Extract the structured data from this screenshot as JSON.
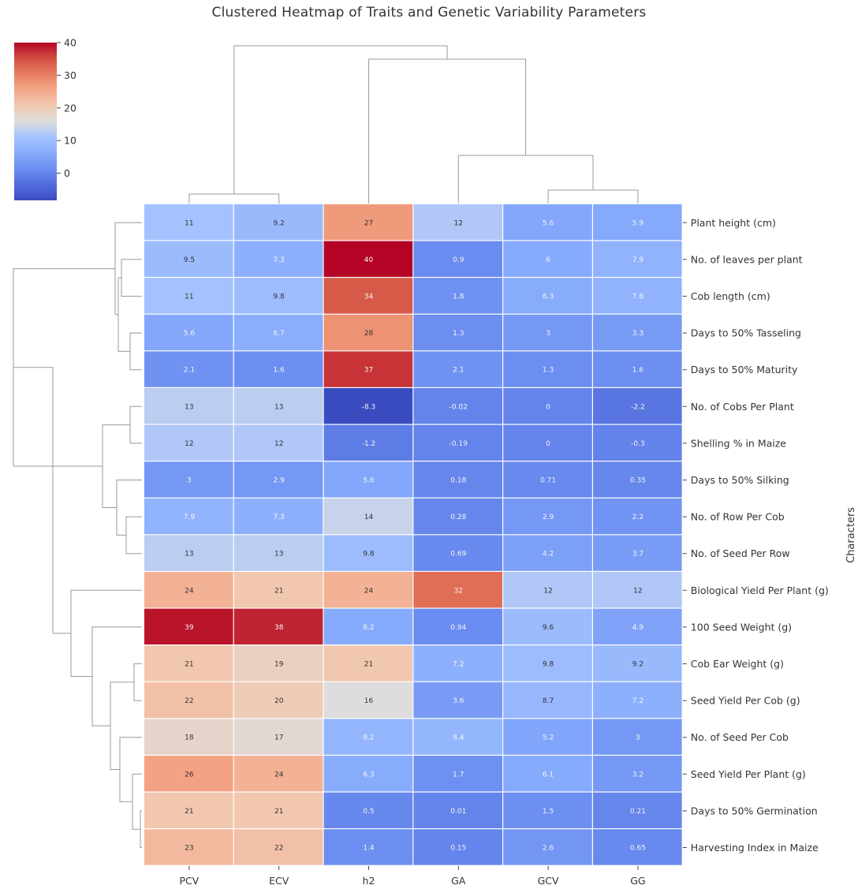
{
  "chart_data": {
    "type": "heatmap",
    "title": "Clustered Heatmap of Traits and Genetic Variability Parameters",
    "ylabel": "Characters",
    "columns": [
      "PCV",
      "ECV",
      "h2",
      "GA",
      "GCV",
      "GG"
    ],
    "rows": [
      "Plant height (cm)",
      "No. of leaves per plant",
      "Cob length (cm)",
      "Days to 50% Tasseling",
      "Days to 50% Maturity",
      "No. of Cobs Per Plant",
      "Shelling % in Maize",
      "Days to 50% Silking",
      "No. of Row Per Cob",
      "No. of Seed Per Row",
      "Biological Yield Per Plant (g)",
      "100 Seed Weight (g)",
      "Cob Ear Weight (g)",
      "Seed Yield Per Cob (g)",
      "No. of Seed Per Cob",
      "Seed Yield Per Plant (g)",
      "Days to 50% Germination",
      "Harvesting Index in Maize"
    ],
    "values": [
      [
        11,
        9.2,
        27,
        12,
        5.6,
        5.9
      ],
      [
        9.5,
        7.3,
        40,
        0.9,
        6,
        7.9
      ],
      [
        11,
        9.8,
        34,
        1.8,
        6.3,
        7.8
      ],
      [
        5.6,
        6.7,
        28,
        1.3,
        3,
        3.3
      ],
      [
        2.1,
        1.6,
        37,
        2.1,
        1.3,
        1.6
      ],
      [
        13,
        13,
        -8.3,
        -0.02,
        0,
        -2.2
      ],
      [
        12,
        12,
        -1.2,
        -0.19,
        0,
        -0.3
      ],
      [
        3,
        2.9,
        5.6,
        0.18,
        0.71,
        0.35
      ],
      [
        7.9,
        7.3,
        14,
        0.28,
        2.9,
        2.2
      ],
      [
        13,
        13,
        9.8,
        0.69,
        4.2,
        3.7
      ],
      [
        24,
        21,
        24,
        32,
        12,
        12
      ],
      [
        39,
        38,
        6.2,
        0.94,
        9.6,
        4.9
      ],
      [
        21,
        19,
        21,
        7.2,
        9.8,
        9.2
      ],
      [
        22,
        20,
        16,
        3.6,
        8.7,
        7.2
      ],
      [
        18,
        17,
        8.2,
        8.4,
        5.2,
        3
      ],
      [
        26,
        24,
        6.3,
        1.7,
        6.1,
        3.2
      ],
      [
        21,
        21,
        0.5,
        0.01,
        1.5,
        0.21
      ],
      [
        23,
        22,
        1.4,
        0.15,
        2.6,
        0.65
      ]
    ],
    "colorbar": {
      "vmin": -8.3,
      "vmax": 40,
      "ticks": [
        40,
        30,
        20,
        10,
        0
      ]
    },
    "colormap": "coolwarm",
    "colors": {
      "low": "#3b4cc0",
      "mid": "#dddddd",
      "high": "#b40426"
    },
    "grid": false,
    "dendrograms": {
      "rows": true,
      "columns": true
    }
  }
}
